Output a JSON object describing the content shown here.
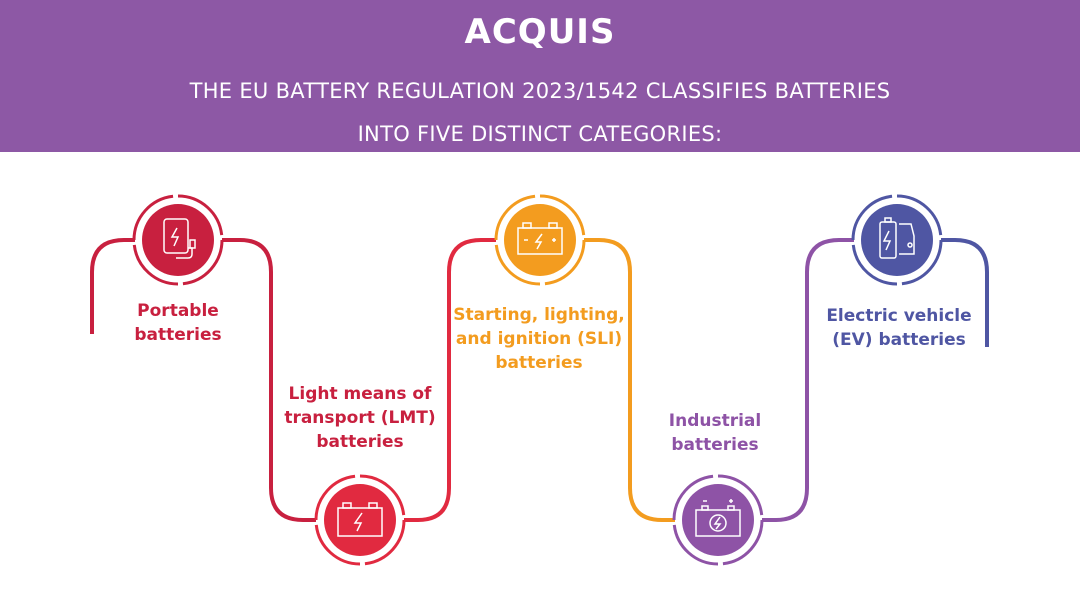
{
  "header": {
    "logo": "ACQUIS",
    "title_line1": "THE EU BATTERY REGULATION 2023/1542 CLASSIFIES BATTERIES",
    "title_line2": "INTO FIVE DISTINCT CATEGORIES:"
  },
  "colors": {
    "header_bg": "#8d58a5",
    "portable": "#c8203f",
    "lmt": "#e12a40",
    "sli": "#f39c1f",
    "industrial": "#8e53a6",
    "ev": "#4f56a3"
  },
  "categories": [
    {
      "label_line1": "Portable",
      "label_line2": "batteries",
      "label_line3": "",
      "icon": "power-bank-icon"
    },
    {
      "label_line1": "Light means of",
      "label_line2": "transport (LMT)",
      "label_line3": "batteries",
      "icon": "car-battery-icon"
    },
    {
      "label_line1": "Starting, lighting,",
      "label_line2": "and ignition (SLI)",
      "label_line3": "batteries",
      "icon": "car-battery-icon"
    },
    {
      "label_line1": "Industrial",
      "label_line2": "batteries",
      "label_line3": "",
      "icon": "industrial-battery-icon"
    },
    {
      "label_line1": "Electric vehicle",
      "label_line2": "(EV) batteries",
      "label_line3": "",
      "icon": "ev-battery-icon"
    }
  ]
}
